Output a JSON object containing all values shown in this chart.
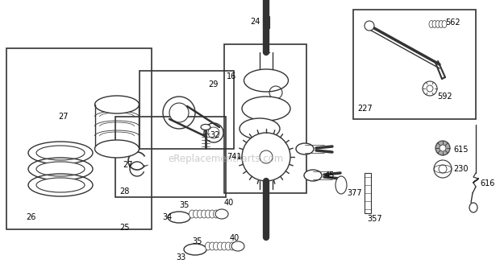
{
  "bg_color": "#ffffff",
  "line_color": "#333333",
  "label_color": "#000000",
  "watermark_color": "#bbbbbb",
  "watermark_text": "eReplacementParts.com",
  "figsize": [
    6.2,
    3.48
  ],
  "dpi": 100,
  "label_fontsize": 7.0
}
